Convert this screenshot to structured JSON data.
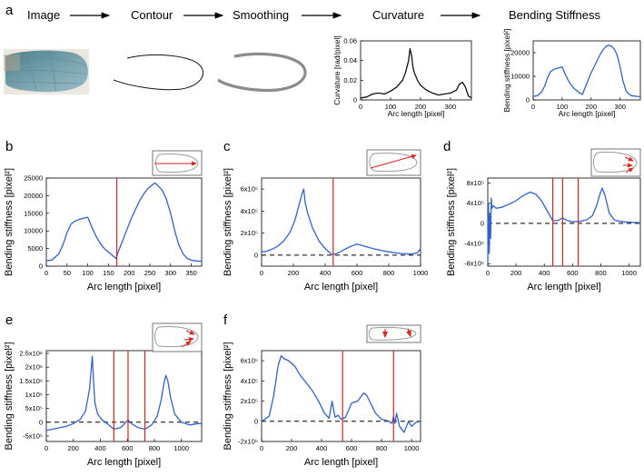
{
  "panel_a": {
    "letter": "a",
    "steps": [
      "Image",
      "Contour",
      "Smoothing",
      "Curvature",
      "Bending Stiffness"
    ]
  },
  "colors": {
    "stiffness_line": "#2f62d6",
    "curvature_line": "#111111",
    "marker": "#e0231b",
    "smooth_contour": "#8c8c8c",
    "wing_fill": "#6f9aa8"
  },
  "chart_data": [
    {
      "id": "a-curv",
      "type": "line",
      "title": "Curvature",
      "xlabel": "Arc length [pixel]",
      "ylabel": "Curvature [rad/pixel]",
      "xlim": [
        0,
        370
      ],
      "ylim": [
        0,
        0.06
      ],
      "xticks": [
        0,
        100,
        200,
        300
      ],
      "yticks": [
        0,
        0.02,
        0.04,
        0.06
      ],
      "ytick_labels": [
        "0",
        "0.02",
        "0.04",
        "0.06"
      ],
      "x": [
        0,
        20,
        40,
        60,
        80,
        100,
        120,
        140,
        150,
        160,
        165,
        170,
        175,
        180,
        190,
        200,
        220,
        240,
        260,
        280,
        300,
        320,
        330,
        340,
        350,
        360,
        370
      ],
      "values": [
        0.002,
        0.003,
        0.006,
        0.007,
        0.006,
        0.009,
        0.013,
        0.02,
        0.028,
        0.04,
        0.052,
        0.045,
        0.033,
        0.027,
        0.02,
        0.015,
        0.01,
        0.007,
        0.005,
        0.006,
        0.007,
        0.01,
        0.016,
        0.018,
        0.013,
        0.004,
        0.002
      ],
      "red_lines": []
    },
    {
      "id": "a-stiff",
      "type": "line",
      "title": "Bending Stiffness",
      "xlabel": "Arc length [pixel]",
      "ylabel": "Bending stiffness [pixel²]",
      "xlim": [
        0,
        370
      ],
      "ylim": [
        0,
        25000
      ],
      "xticks": [
        0,
        100,
        200,
        300
      ],
      "yticks": [
        0,
        10000,
        20000
      ],
      "ytick_labels": [
        "0",
        "10000",
        "20000"
      ],
      "x": [
        0,
        15,
        30,
        40,
        50,
        60,
        70,
        80,
        90,
        100,
        110,
        120,
        130,
        140,
        150,
        160,
        170,
        180,
        190,
        200,
        210,
        220,
        230,
        240,
        250,
        260,
        270,
        280,
        290,
        300,
        310,
        320,
        330,
        340,
        350,
        360,
        370
      ],
      "values": [
        1500,
        1800,
        3500,
        6000,
        9500,
        12000,
        12800,
        13300,
        13600,
        14000,
        11000,
        8500,
        6500,
        5000,
        4000,
        3000,
        2300,
        5500,
        8500,
        11500,
        14000,
        16500,
        19000,
        21000,
        22500,
        23200,
        22800,
        21500,
        19000,
        14000,
        8000,
        4000,
        2500,
        1800,
        1600,
        1500,
        1400
      ],
      "red_lines": []
    },
    {
      "id": "b",
      "type": "line",
      "letter": "b",
      "xlabel": "Arc length [pixel]",
      "ylabel": "Bending stiffness [pixel²]",
      "xlim": [
        0,
        375
      ],
      "ylim": [
        0,
        25000
      ],
      "xticks": [
        0,
        50,
        100,
        150,
        200,
        250,
        300,
        350
      ],
      "yticks": [
        0,
        5000,
        10000,
        15000,
        20000,
        25000
      ],
      "ytick_labels": [
        "0",
        "5000",
        "10000",
        "15000",
        "20000",
        "25000"
      ],
      "x": [
        0,
        15,
        30,
        40,
        50,
        60,
        70,
        80,
        90,
        100,
        110,
        120,
        130,
        140,
        150,
        160,
        168,
        175,
        185,
        195,
        205,
        215,
        225,
        235,
        245,
        255,
        262,
        270,
        280,
        290,
        300,
        310,
        320,
        330,
        340,
        350,
        360,
        375
      ],
      "values": [
        1500,
        1800,
        3500,
        6000,
        9500,
        12000,
        12800,
        13300,
        13600,
        13900,
        11000,
        8500,
        6500,
        5000,
        4000,
        3000,
        2200,
        4500,
        7500,
        10500,
        13500,
        16000,
        18500,
        20500,
        22000,
        23000,
        23600,
        22800,
        21500,
        19000,
        15000,
        10000,
        6000,
        3500,
        2200,
        1700,
        1500,
        1400
      ],
      "red_lines": [
        170
      ],
      "zero_dashed": false
    },
    {
      "id": "c",
      "type": "line",
      "letter": "c",
      "xlabel": "Arc length [pixel]",
      "ylabel": "Bending stiffness [pixel²]",
      "xlim": [
        0,
        1000
      ],
      "ylim": [
        -100000,
        700000
      ],
      "xticks": [
        0,
        200,
        400,
        600,
        800,
        1000
      ],
      "yticks": [
        0,
        200000,
        400000,
        600000
      ],
      "ytick_labels": [
        "0",
        "2x10⁵",
        "4x10⁵",
        "6x10⁵"
      ],
      "x": [
        0,
        30,
        60,
        100,
        140,
        180,
        210,
        240,
        255,
        265,
        275,
        290,
        320,
        360,
        400,
        430,
        450,
        480,
        520,
        560,
        600,
        640,
        700,
        760,
        820,
        880,
        940,
        980,
        1000
      ],
      "values": [
        30000,
        35000,
        50000,
        80000,
        130000,
        210000,
        320000,
        480000,
        560000,
        600000,
        470000,
        380000,
        250000,
        130000,
        60000,
        20000,
        5000,
        20000,
        50000,
        80000,
        100000,
        85000,
        60000,
        40000,
        25000,
        15000,
        10000,
        20000,
        60000
      ],
      "red_lines": [
        450
      ],
      "zero_dashed": true
    },
    {
      "id": "d",
      "type": "line",
      "letter": "d",
      "xlabel": "Arc length [pixel]",
      "ylabel": "Bending stiffness [pixel²]",
      "xlim": [
        0,
        1080
      ],
      "ylim": [
        -850000,
        900000
      ],
      "xticks": [
        0,
        200,
        400,
        600,
        800,
        1000
      ],
      "yticks": [
        -800000,
        -400000,
        0,
        400000,
        800000
      ],
      "ytick_labels": [
        "-8x10⁵",
        "-4x10⁵",
        "0",
        "4x10⁵",
        "8x10⁵"
      ],
      "x": [
        0,
        5,
        10,
        15,
        20,
        25,
        30,
        40,
        60,
        100,
        150,
        200,
        250,
        300,
        340,
        380,
        420,
        460,
        500,
        530,
        560,
        600,
        650,
        700,
        740,
        770,
        790,
        810,
        830,
        860,
        900,
        960,
        1020,
        1080
      ],
      "values": [
        -800000,
        400000,
        -600000,
        200000,
        -300000,
        500000,
        300000,
        350000,
        300000,
        320000,
        380000,
        450000,
        550000,
        620000,
        580000,
        450000,
        250000,
        50000,
        60000,
        110000,
        60000,
        30000,
        40000,
        70000,
        150000,
        350000,
        550000,
        700000,
        550000,
        200000,
        60000,
        30000,
        20000,
        15000
      ],
      "red_lines": [
        460,
        530,
        640
      ],
      "zero_dashed": true
    },
    {
      "id": "e",
      "type": "line",
      "letter": "e",
      "xlabel": "Arc length [pixel]",
      "ylabel": "Bending stiffness [pixel²]",
      "xlim": [
        0,
        1150
      ],
      "ylim": [
        -700000,
        2600000
      ],
      "xticks": [
        0,
        200,
        400,
        600,
        800,
        1000
      ],
      "yticks": [
        -500000,
        0,
        500000,
        1000000,
        1500000,
        2000000,
        2500000
      ],
      "ytick_labels": [
        "-5x10⁵",
        "0",
        "5x10⁵",
        "1x10⁶",
        "1.5x10⁶",
        "2x10⁶",
        "2.5x10⁶"
      ],
      "x": [
        0,
        50,
        100,
        150,
        200,
        250,
        290,
        320,
        340,
        350,
        360,
        380,
        410,
        450,
        500,
        550,
        580,
        605,
        630,
        680,
        730,
        780,
        820,
        850,
        870,
        885,
        900,
        920,
        950,
        1000,
        1060,
        1120,
        1150
      ],
      "values": [
        -300000,
        -250000,
        -200000,
        -150000,
        -50000,
        100000,
        400000,
        1200000,
        2400000,
        1500000,
        700000,
        300000,
        100000,
        -50000,
        -250000,
        -200000,
        -50000,
        80000,
        -50000,
        -200000,
        -250000,
        -100000,
        200000,
        800000,
        1400000,
        1700000,
        1500000,
        900000,
        300000,
        0,
        -100000,
        -50000,
        -50000
      ],
      "red_lines": [
        500,
        605,
        730
      ],
      "zero_dashed": true
    },
    {
      "id": "f",
      "type": "line",
      "letter": "f",
      "xlabel": "Arc length [pixel]",
      "ylabel": "Bending stiffness [pixel²]",
      "xlim": [
        0,
        1060
      ],
      "ylim": [
        -200000,
        700000
      ],
      "xticks": [
        0,
        200,
        400,
        600,
        800,
        1000
      ],
      "yticks": [
        -200000,
        0,
        200000,
        400000,
        600000
      ],
      "ytick_labels": [
        "-2x10⁵",
        "0",
        "2x10⁵",
        "4x10⁵",
        "6x10⁵"
      ],
      "x": [
        0,
        50,
        80,
        110,
        130,
        150,
        180,
        220,
        260,
        300,
        340,
        380,
        420,
        450,
        470,
        490,
        510,
        530,
        560,
        600,
        640,
        680,
        700,
        720,
        760,
        800,
        840,
        870,
        880,
        890,
        900,
        920,
        950,
        980,
        1000,
        1030,
        1060
      ],
      "values": [
        0,
        50000,
        250000,
        550000,
        650000,
        620000,
        600000,
        550000,
        450000,
        380000,
        300000,
        200000,
        80000,
        30000,
        200000,
        40000,
        60000,
        20000,
        40000,
        180000,
        200000,
        280000,
        260000,
        200000,
        80000,
        20000,
        5000,
        -20000,
        50000,
        -20000,
        80000,
        -50000,
        -110000,
        0,
        -50000,
        -10000,
        0
      ],
      "red_lines": [
        540,
        880
      ],
      "zero_dashed": true
    }
  ]
}
